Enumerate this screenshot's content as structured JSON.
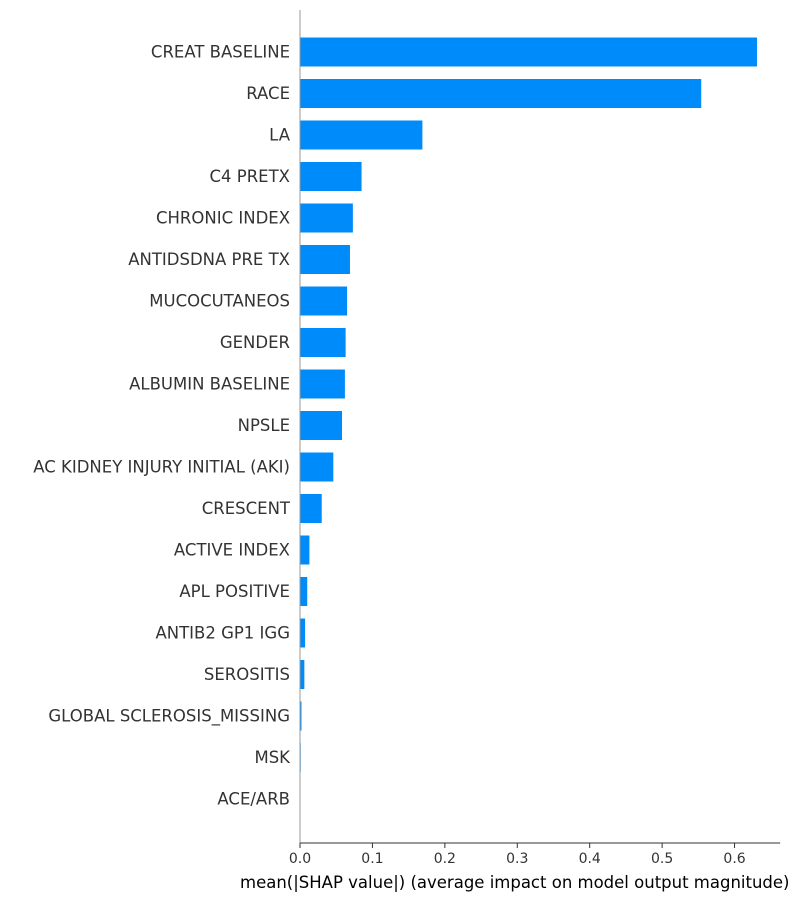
{
  "chart_data": {
    "type": "bar",
    "orientation": "horizontal",
    "categories": [
      "CREAT BASELINE",
      "RACE",
      "LA",
      "C4 PRETX",
      "CHRONIC INDEX",
      "ANTIDSDNA PRE TX",
      "MUCOCUTANEOS",
      "GENDER",
      "ALBUMIN BASELINE",
      "NPSLE",
      "AC KIDNEY INJURY INITIAL (AKI)",
      "CRESCENT",
      "ACTIVE INDEX",
      "APL POSITIVE",
      "ANTIB2 GP1 IGG",
      "SEROSITIS",
      "GLOBAL SCLEROSIS_MISSING",
      "MSK",
      "ACE/ARB"
    ],
    "values": [
      0.631,
      0.554,
      0.169,
      0.085,
      0.073,
      0.069,
      0.065,
      0.063,
      0.062,
      0.058,
      0.046,
      0.03,
      0.013,
      0.01,
      0.007,
      0.006,
      0.002,
      0.001,
      0.0
    ],
    "xlabel": "mean(|SHAP value|) (average impact on model output magnitude)",
    "xlim": [
      0.0,
      0.663
    ],
    "xticks": [
      "0.0",
      "0.1",
      "0.2",
      "0.3",
      "0.4",
      "0.5",
      "0.6"
    ],
    "grid": false,
    "legend": "none",
    "bar_color": "#008bfb",
    "axis_color": "#999999"
  }
}
